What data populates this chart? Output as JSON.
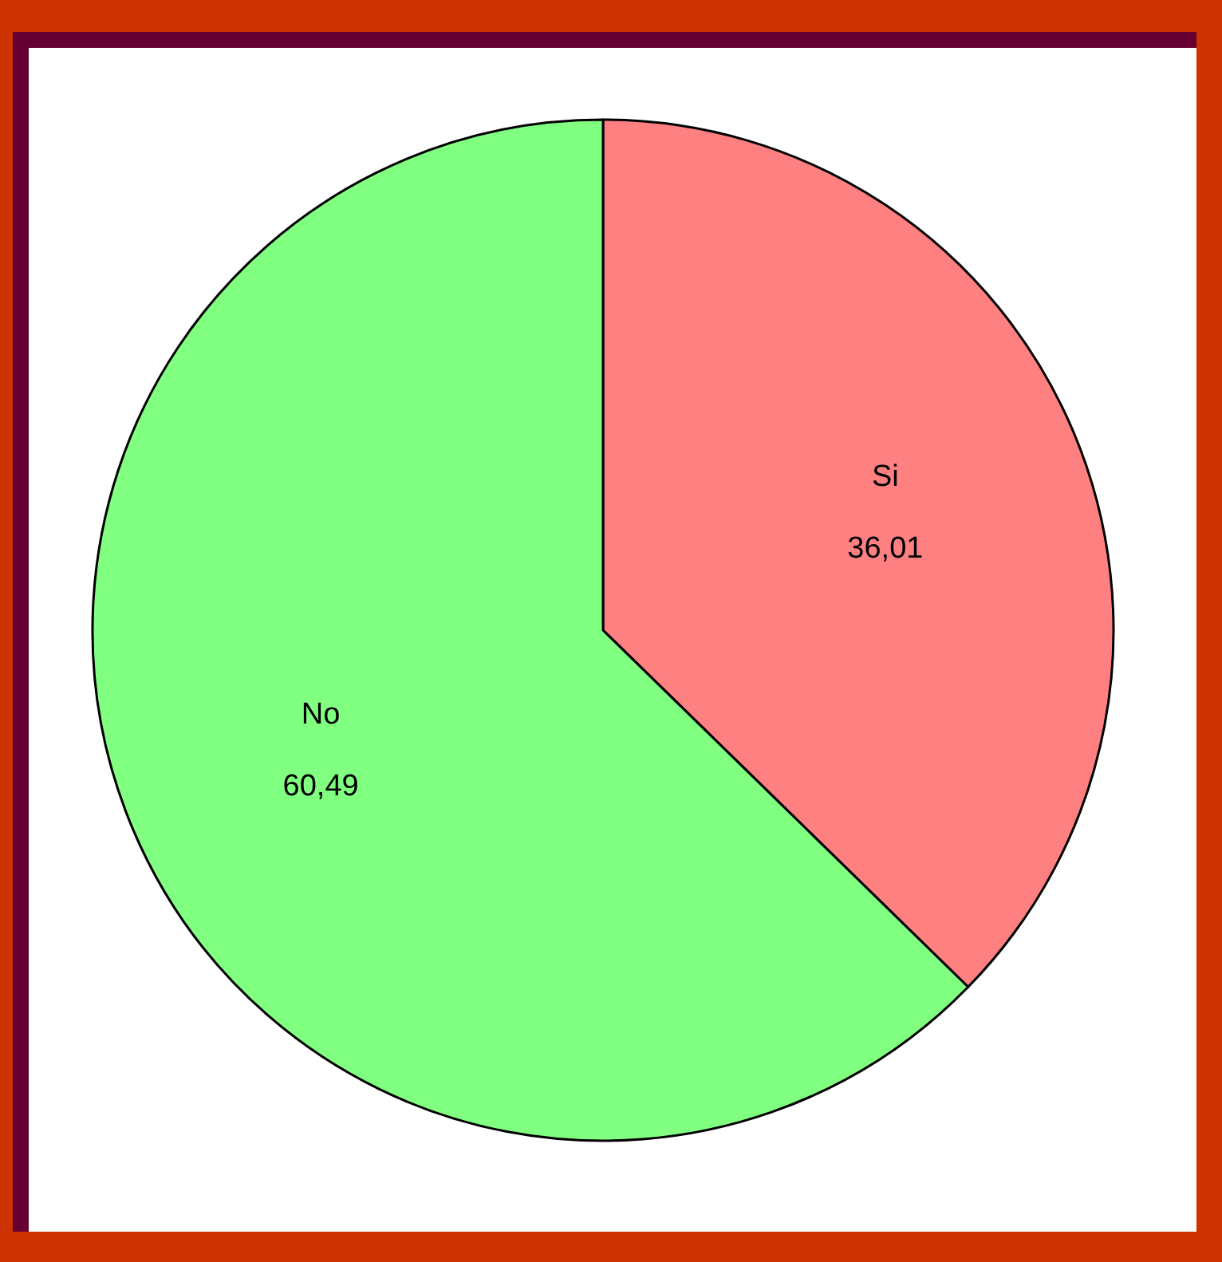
{
  "chart_data": {
    "type": "pie",
    "categories": [
      "Si",
      "No"
    ],
    "values": [
      36.01,
      60.49
    ],
    "value_labels": [
      "36,01",
      "60,49"
    ],
    "colors": [
      "#ff8080",
      "#80ff80"
    ]
  }
}
